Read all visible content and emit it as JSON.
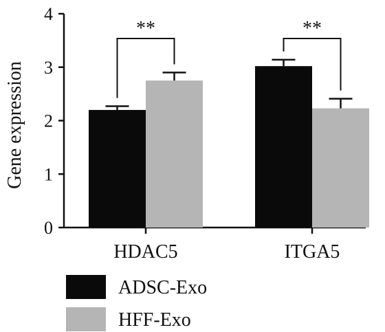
{
  "chart_data": {
    "type": "bar",
    "title": "",
    "xlabel": "",
    "ylabel": "Gene expression",
    "ylim": [
      0,
      4
    ],
    "yticks": [
      "0",
      "1",
      "2",
      "3",
      "4"
    ],
    "categories": [
      "HDAC5",
      "ITGA5"
    ],
    "series": [
      {
        "name": "ADSC-Exo",
        "color": "#0a0a0a",
        "values": [
          2.2,
          3.02
        ],
        "errors": [
          0.07,
          0.12
        ]
      },
      {
        "name": "HFF-Exo",
        "color": "#b5b5b5",
        "values": [
          2.75,
          2.23
        ],
        "errors": [
          0.15,
          0.18
        ]
      }
    ],
    "annotations": [
      {
        "category": "HDAC5",
        "text": "**"
      },
      {
        "category": "ITGA5",
        "text": "**"
      }
    ],
    "legend_position": "bottom-left",
    "grid": false
  }
}
